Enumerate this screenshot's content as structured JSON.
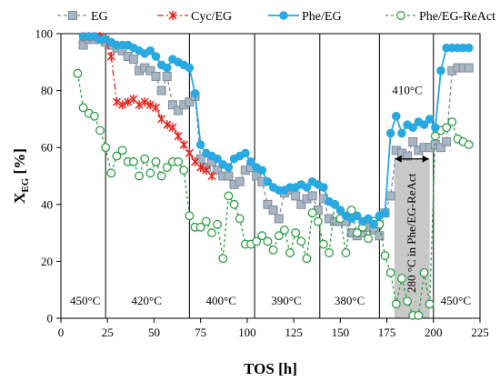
{
  "chart_data": {
    "type": "line",
    "xlabel": "TOS [h]",
    "ylabel": "X",
    "ylabel_sub": "EG",
    "ylabel_unit": "[%]",
    "xlim": [
      0,
      225
    ],
    "ylim": [
      0,
      100
    ],
    "x_ticks": [
      0,
      25,
      50,
      75,
      100,
      125,
      150,
      175,
      200,
      225
    ],
    "y_ticks": [
      0,
      20,
      40,
      60,
      80,
      100
    ],
    "grid": false,
    "legend_position": "top",
    "region_boundaries": [
      24,
      69,
      104,
      139,
      171,
      200
    ],
    "temperature_labels": [
      {
        "text": "450°C",
        "x": 13,
        "y": 6
      },
      {
        "text": "420°C",
        "x": 46,
        "y": 6
      },
      {
        "text": "400°C",
        "x": 86,
        "y": 6
      },
      {
        "text": "390°C",
        "x": 121,
        "y": 6
      },
      {
        "text": "380°C",
        "x": 155,
        "y": 6
      },
      {
        "text": "410°C",
        "x": 186,
        "y": 80
      },
      {
        "text": "450°C",
        "x": 212,
        "y": 6
      }
    ],
    "shaded_region": {
      "x": [
        179,
        198
      ],
      "label": "280 °C in Phe/EG-ReAct",
      "color": "#c8c8c8"
    },
    "shaded_arrow_y": 56,
    "series": [
      {
        "name": "EG",
        "style": "dash-square",
        "color": "#7f8c99",
        "fill": "#a7b5c4",
        "x": [
          12,
          15,
          18,
          21,
          24,
          27,
          30,
          33,
          36,
          39,
          42,
          45,
          48,
          51,
          54,
          57,
          60,
          63,
          66,
          69,
          72,
          75,
          78,
          81,
          84,
          87,
          90,
          93,
          96,
          99,
          102,
          105,
          108,
          111,
          114,
          117,
          120,
          123,
          126,
          129,
          132,
          135,
          138,
          141,
          144,
          147,
          150,
          153,
          156,
          159,
          162,
          165,
          168,
          171,
          174,
          177,
          180,
          183,
          186,
          189,
          192,
          195,
          198,
          201,
          204,
          207,
          210,
          213,
          216,
          219
        ],
        "values": [
          96,
          98,
          98,
          98,
          97,
          96,
          95,
          94,
          92,
          91,
          87,
          88,
          87,
          85,
          80,
          85,
          75,
          73,
          75,
          76,
          78,
          56,
          53,
          55,
          52,
          50,
          50,
          47,
          48,
          52,
          53,
          50,
          48,
          40,
          38,
          35,
          44,
          45,
          43,
          40,
          42,
          43,
          38,
          42,
          35,
          34,
          34,
          34,
          30,
          29,
          30,
          32,
          31,
          29,
          37,
          43,
          59,
          58,
          57,
          62,
          59,
          60,
          60,
          61,
          60,
          62,
          87,
          88,
          88,
          88
        ]
      },
      {
        "name": "Cyc/EG",
        "style": "dashdot-star",
        "color": "#e5231b",
        "x": [
          12,
          15,
          18,
          21,
          24,
          27,
          30,
          33,
          36,
          39,
          42,
          45,
          48,
          51,
          54,
          57,
          60,
          63,
          66,
          69,
          72,
          75,
          78,
          81
        ],
        "values": [
          99,
          99,
          99,
          99,
          98,
          92,
          76,
          75,
          76,
          77,
          75,
          76,
          75,
          74,
          70,
          68,
          67,
          64,
          61,
          58,
          55,
          53,
          52,
          50
        ]
      },
      {
        "name": "Phe/EG",
        "style": "solid-circle",
        "color": "#29a9e1",
        "x": [
          12,
          15,
          18,
          21,
          24,
          27,
          30,
          33,
          36,
          39,
          42,
          45,
          48,
          51,
          54,
          57,
          60,
          63,
          66,
          69,
          72,
          75,
          78,
          81,
          84,
          87,
          90,
          93,
          96,
          99,
          102,
          105,
          108,
          111,
          114,
          117,
          120,
          123,
          126,
          129,
          132,
          135,
          138,
          141,
          144,
          147,
          150,
          153,
          156,
          159,
          162,
          165,
          168,
          171,
          174,
          177,
          180,
          183,
          186,
          189,
          192,
          195,
          198,
          201,
          204,
          207,
          210,
          213,
          216,
          219
        ],
        "values": [
          99,
          99,
          99,
          98,
          98,
          97,
          96,
          96,
          96,
          95,
          94,
          93,
          94,
          92,
          89,
          88,
          91,
          90,
          89,
          88,
          79,
          61,
          58,
          57,
          56,
          54,
          53,
          56,
          57,
          58,
          55,
          53,
          52,
          48,
          46,
          45,
          45,
          46,
          46,
          47,
          46,
          48,
          47,
          46,
          41,
          40,
          38,
          36,
          35,
          36,
          34,
          35,
          33,
          36,
          37,
          65,
          71,
          65,
          68,
          67,
          69,
          68,
          70,
          67,
          87,
          95,
          95,
          95,
          95,
          95
        ]
      },
      {
        "name": "Phe/EG-ReAct",
        "style": "dash-circle-open",
        "color": "#2e9e46",
        "x": [
          9,
          12,
          15,
          18,
          21,
          24,
          27,
          30,
          33,
          36,
          39,
          42,
          45,
          48,
          51,
          54,
          57,
          60,
          63,
          66,
          69,
          72,
          75,
          78,
          81,
          84,
          87,
          90,
          93,
          96,
          99,
          102,
          105,
          108,
          111,
          114,
          117,
          120,
          123,
          126,
          129,
          132,
          135,
          138,
          141,
          144,
          147,
          150,
          153,
          156,
          159,
          162,
          165,
          168,
          171,
          174,
          177,
          180,
          183,
          186,
          189,
          192,
          195,
          198,
          201,
          204,
          207,
          210,
          213,
          216,
          219
        ],
        "values": [
          86,
          74,
          72,
          71,
          66,
          60,
          51,
          57,
          59,
          55,
          55,
          50,
          56,
          51,
          55,
          50,
          53,
          55,
          55,
          52,
          36,
          32,
          32,
          34,
          30,
          33,
          21,
          43,
          40,
          35,
          26,
          26,
          27,
          29,
          27,
          24,
          29,
          31,
          23,
          30,
          27,
          21,
          37,
          34,
          26,
          23,
          40,
          35,
          23,
          38,
          30,
          32,
          28,
          34,
          33,
          22,
          16,
          5,
          14,
          6,
          1,
          1,
          16,
          5,
          64,
          66,
          67,
          69,
          63,
          62,
          61
        ]
      }
    ]
  }
}
